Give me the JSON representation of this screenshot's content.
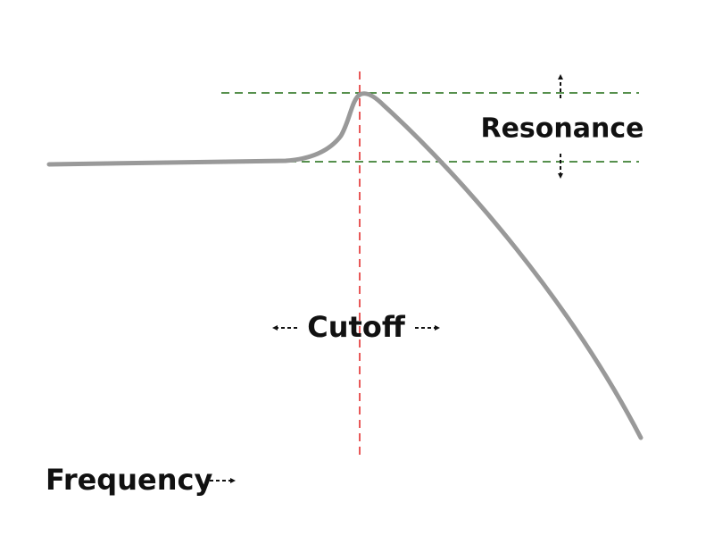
{
  "labels": {
    "resonance": "Resonance",
    "cutoff": "Cutoff",
    "frequency": "Frequency"
  }
}
